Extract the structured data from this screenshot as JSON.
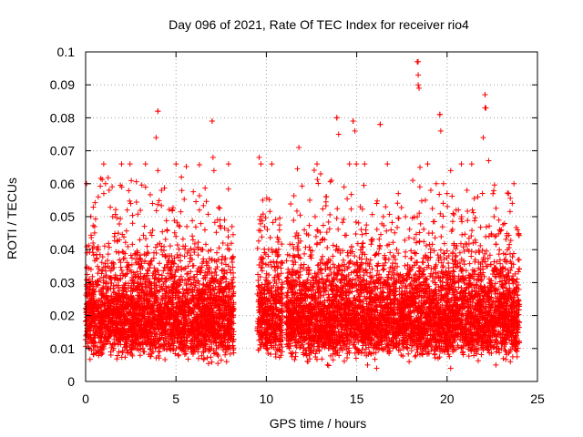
{
  "chart_data": {
    "type": "scatter",
    "title": "Day 096 of 2021, Rate Of TEC Index for receiver rio4",
    "xlabel": "GPS time / hours",
    "ylabel": "ROTI / TECUs",
    "xlim": [
      0,
      25
    ],
    "ylim": [
      0,
      0.1
    ],
    "x_ticks": [
      0,
      5,
      10,
      15,
      20,
      25
    ],
    "x_tick_labels": [
      "0",
      "5",
      "10",
      "15",
      "20",
      "25"
    ],
    "y_ticks": [
      0,
      0.01,
      0.02,
      0.03,
      0.04,
      0.05,
      0.06,
      0.07,
      0.08,
      0.09,
      0.1
    ],
    "y_tick_labels": [
      "0",
      "0.01",
      "0.02",
      "0.03",
      "0.04",
      "0.05",
      "0.06",
      "0.07",
      "0.08",
      "0.09",
      "0.1"
    ],
    "grid": true,
    "legend": "none",
    "marker": "plus",
    "color": "#ff0000",
    "data_gaps_hours": [
      [
        8.2,
        9.5
      ],
      [
        10.9,
        11.1
      ]
    ],
    "notable_peaks": [
      {
        "x": 4.0,
        "y": 0.082
      },
      {
        "x": 7.0,
        "y": 0.079
      },
      {
        "x": 13.9,
        "y": 0.08
      },
      {
        "x": 14.8,
        "y": 0.079
      },
      {
        "x": 16.3,
        "y": 0.078
      },
      {
        "x": 18.4,
        "y": 0.097
      },
      {
        "x": 18.4,
        "y": 0.09
      },
      {
        "x": 19.6,
        "y": 0.081
      },
      {
        "x": 22.1,
        "y": 0.087
      },
      {
        "x": 22.1,
        "y": 0.083
      }
    ],
    "series": [
      {
        "x_range": [
          0,
          24
        ],
        "y_typical_range": [
          0.005,
          0.045
        ],
        "y_median": 0.02,
        "points": [
          [
            0.05,
            0.06
          ],
          [
            0.1,
            0.012
          ],
          [
            0.3,
            0.034
          ],
          [
            0.5,
            0.047
          ],
          [
            0.7,
            0.056
          ],
          [
            1.0,
            0.066
          ],
          [
            1.1,
            0.06
          ],
          [
            1.3,
            0.058
          ],
          [
            1.5,
            0.05
          ],
          [
            1.8,
            0.045
          ],
          [
            2.0,
            0.059
          ],
          [
            2.3,
            0.052
          ],
          [
            2.6,
            0.048
          ],
          [
            3.0,
            0.043
          ],
          [
            3.4,
            0.041
          ],
          [
            3.7,
            0.054
          ],
          [
            3.9,
            0.074
          ],
          [
            4.0,
            0.082
          ],
          [
            4.0,
            0.064
          ],
          [
            4.2,
            0.058
          ],
          [
            4.5,
            0.046
          ],
          [
            4.8,
            0.052
          ],
          [
            5.0,
            0.044
          ],
          [
            5.3,
            0.062
          ],
          [
            5.6,
            0.047
          ],
          [
            6.0,
            0.04
          ],
          [
            6.3,
            0.052
          ],
          [
            6.6,
            0.046
          ],
          [
            7.0,
            0.079
          ],
          [
            7.05,
            0.068
          ],
          [
            7.1,
            0.064
          ],
          [
            7.3,
            0.049
          ],
          [
            7.6,
            0.042
          ],
          [
            7.9,
            0.035
          ],
          [
            8.1,
            0.047
          ],
          [
            8.15,
            0.012
          ],
          [
            9.6,
            0.068
          ],
          [
            9.7,
            0.066
          ],
          [
            9.8,
            0.055
          ],
          [
            9.9,
            0.047
          ],
          [
            10.1,
            0.038
          ],
          [
            10.4,
            0.029
          ],
          [
            10.7,
            0.031
          ],
          [
            10.85,
            0.036
          ],
          [
            11.2,
            0.034
          ],
          [
            11.6,
            0.044
          ],
          [
            11.8,
            0.071
          ],
          [
            12.1,
            0.046
          ],
          [
            12.4,
            0.055
          ],
          [
            12.7,
            0.05
          ],
          [
            13.0,
            0.063
          ],
          [
            13.3,
            0.056
          ],
          [
            13.6,
            0.061
          ],
          [
            13.9,
            0.08
          ],
          [
            14.0,
            0.075
          ],
          [
            14.3,
            0.059
          ],
          [
            14.6,
            0.066
          ],
          [
            14.8,
            0.079
          ],
          [
            14.9,
            0.076
          ],
          [
            15.2,
            0.053
          ],
          [
            15.5,
            0.046
          ],
          [
            15.8,
            0.043
          ],
          [
            16.1,
            0.054
          ],
          [
            16.3,
            0.078
          ],
          [
            16.6,
            0.053
          ],
          [
            16.9,
            0.046
          ],
          [
            17.3,
            0.057
          ],
          [
            17.7,
            0.05
          ],
          [
            18.1,
            0.061
          ],
          [
            18.35,
            0.097
          ],
          [
            18.4,
            0.093
          ],
          [
            18.45,
            0.089
          ],
          [
            18.5,
            0.065
          ],
          [
            18.8,
            0.055
          ],
          [
            19.1,
            0.058
          ],
          [
            19.4,
            0.06
          ],
          [
            19.6,
            0.081
          ],
          [
            19.65,
            0.076
          ],
          [
            19.8,
            0.06
          ],
          [
            20.0,
            0.057
          ],
          [
            20.2,
            0.064
          ],
          [
            20.5,
            0.052
          ],
          [
            20.8,
            0.05
          ],
          [
            21.1,
            0.058
          ],
          [
            21.4,
            0.052
          ],
          [
            21.7,
            0.056
          ],
          [
            22.0,
            0.074
          ],
          [
            22.1,
            0.087
          ],
          [
            22.15,
            0.083
          ],
          [
            22.3,
            0.067
          ],
          [
            22.6,
            0.05
          ],
          [
            23.0,
            0.046
          ],
          [
            23.4,
            0.057
          ],
          [
            23.7,
            0.06
          ],
          [
            23.9,
            0.046
          ],
          [
            0.2,
            0.01
          ],
          [
            1.4,
            0.008
          ],
          [
            3.2,
            0.009
          ],
          [
            5.5,
            0.011
          ],
          [
            7.8,
            0.006
          ],
          [
            10.0,
            0.01
          ],
          [
            12.3,
            0.006
          ],
          [
            15.6,
            0.005
          ],
          [
            16.1,
            0.004
          ],
          [
            17.9,
            0.006
          ],
          [
            19.5,
            0.007
          ],
          [
            20.2,
            0.004
          ],
          [
            22.7,
            0.005
          ],
          [
            23.5,
            0.006
          ]
        ]
      }
    ]
  }
}
